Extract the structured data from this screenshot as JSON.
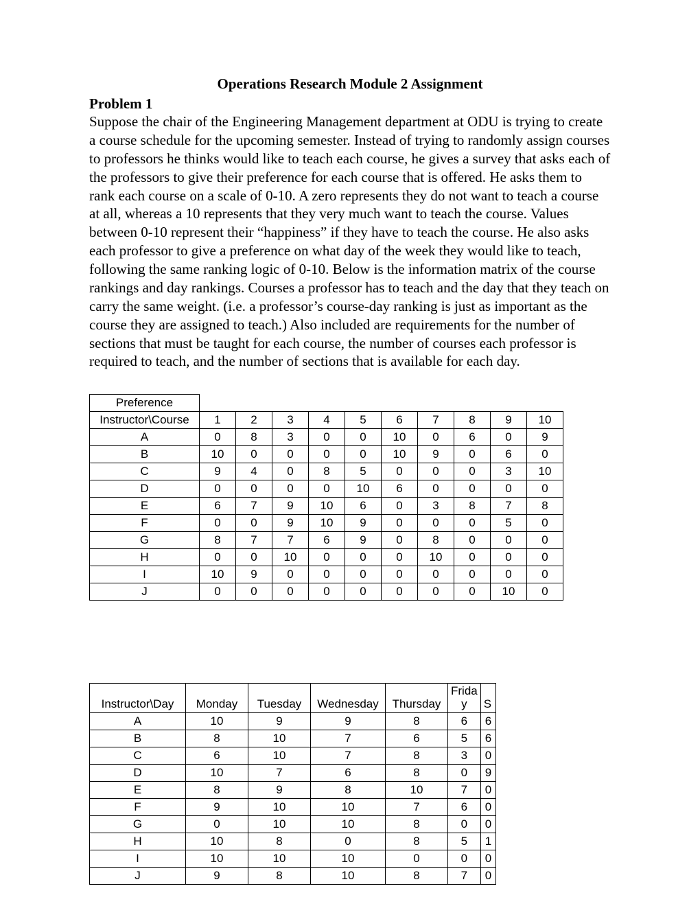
{
  "title": "Operations Research Module 2 Assignment",
  "problemHeading": "Problem 1",
  "bodyText": "Suppose the chair of the Engineering Management department at ODU is trying to create a course schedule for the upcoming semester. Instead of trying to randomly assign courses to professors he thinks would like to teach each course, he gives a survey that asks each of the professors to give their preference for each course that is offered. He asks them to rank each course on a scale of 0-10. A zero represents they do not want to teach a course at all, whereas a 10 represents that they very much want to teach the course. Values between 0-10 represent their “happiness” if they have to teach the course. He also asks each professor to give a preference on what day of the week they would like to teach, following the same ranking logic of 0-10. Below is the information matrix of the course rankings and day rankings. Courses a professor has to teach and the day that they teach on carry the same weight. (i.e. a professor’s course-day ranking is just as important as the course they are assigned to teach.) Also included are requirements for the number of sections that must be taught for each course, the number of courses each professor is required to teach, and the number of sections that is available for each day.",
  "table1": {
    "preferenceLabel": "Preference",
    "headerLabel": "Instructor\\Course",
    "columns": [
      "1",
      "2",
      "3",
      "4",
      "5",
      "6",
      "7",
      "8",
      "9",
      "10"
    ],
    "rows": [
      {
        "label": "A",
        "vals": [
          "0",
          "8",
          "3",
          "0",
          "0",
          "10",
          "0",
          "6",
          "0",
          "9"
        ]
      },
      {
        "label": "B",
        "vals": [
          "10",
          "0",
          "0",
          "0",
          "0",
          "10",
          "9",
          "0",
          "6",
          "0"
        ]
      },
      {
        "label": "C",
        "vals": [
          "9",
          "4",
          "0",
          "8",
          "5",
          "0",
          "0",
          "0",
          "3",
          "10"
        ]
      },
      {
        "label": "D",
        "vals": [
          "0",
          "0",
          "0",
          "0",
          "10",
          "6",
          "0",
          "0",
          "0",
          "0"
        ]
      },
      {
        "label": "E",
        "vals": [
          "6",
          "7",
          "9",
          "10",
          "6",
          "0",
          "3",
          "8",
          "7",
          "8"
        ]
      },
      {
        "label": "F",
        "vals": [
          "0",
          "0",
          "9",
          "10",
          "9",
          "0",
          "0",
          "0",
          "5",
          "0"
        ]
      },
      {
        "label": "G",
        "vals": [
          "8",
          "7",
          "7",
          "6",
          "9",
          "0",
          "8",
          "0",
          "0",
          "0"
        ]
      },
      {
        "label": "H",
        "vals": [
          "0",
          "0",
          "10",
          "0",
          "0",
          "0",
          "10",
          "0",
          "0",
          "0"
        ]
      },
      {
        "label": "I",
        "vals": [
          "10",
          "9",
          "0",
          "0",
          "0",
          "0",
          "0",
          "0",
          "0",
          "0"
        ]
      },
      {
        "label": "J",
        "vals": [
          "0",
          "0",
          "0",
          "0",
          "0",
          "0",
          "0",
          "0",
          "10",
          "0"
        ]
      }
    ]
  },
  "table2": {
    "headerLabel": "Instructor\\Day",
    "columns": [
      "Monday",
      "Tuesday",
      "Wednesday",
      "Thursday"
    ],
    "fridaTop": "Frida",
    "fridaBottom": "y",
    "cutHeader": "S",
    "rows": [
      {
        "label": "A",
        "vals": [
          "10",
          "9",
          "9",
          "8",
          "6"
        ],
        "cut": "6"
      },
      {
        "label": "B",
        "vals": [
          "8",
          "10",
          "7",
          "6",
          "5"
        ],
        "cut": "6"
      },
      {
        "label": "C",
        "vals": [
          "6",
          "10",
          "7",
          "8",
          "3"
        ],
        "cut": "0"
      },
      {
        "label": "D",
        "vals": [
          "10",
          "7",
          "6",
          "8",
          "0"
        ],
        "cut": "9"
      },
      {
        "label": "E",
        "vals": [
          "8",
          "9",
          "8",
          "10",
          "7"
        ],
        "cut": "0"
      },
      {
        "label": "F",
        "vals": [
          "9",
          "10",
          "10",
          "7",
          "6"
        ],
        "cut": "0"
      },
      {
        "label": "G",
        "vals": [
          "0",
          "10",
          "10",
          "8",
          "0"
        ],
        "cut": "0"
      },
      {
        "label": "H",
        "vals": [
          "10",
          "8",
          "0",
          "8",
          "5"
        ],
        "cut": "1"
      },
      {
        "label": "I",
        "vals": [
          "10",
          "10",
          "10",
          "0",
          "0"
        ],
        "cut": "0"
      },
      {
        "label": "J",
        "vals": [
          "9",
          "8",
          "10",
          "8",
          "7"
        ],
        "cut": "0"
      }
    ]
  }
}
